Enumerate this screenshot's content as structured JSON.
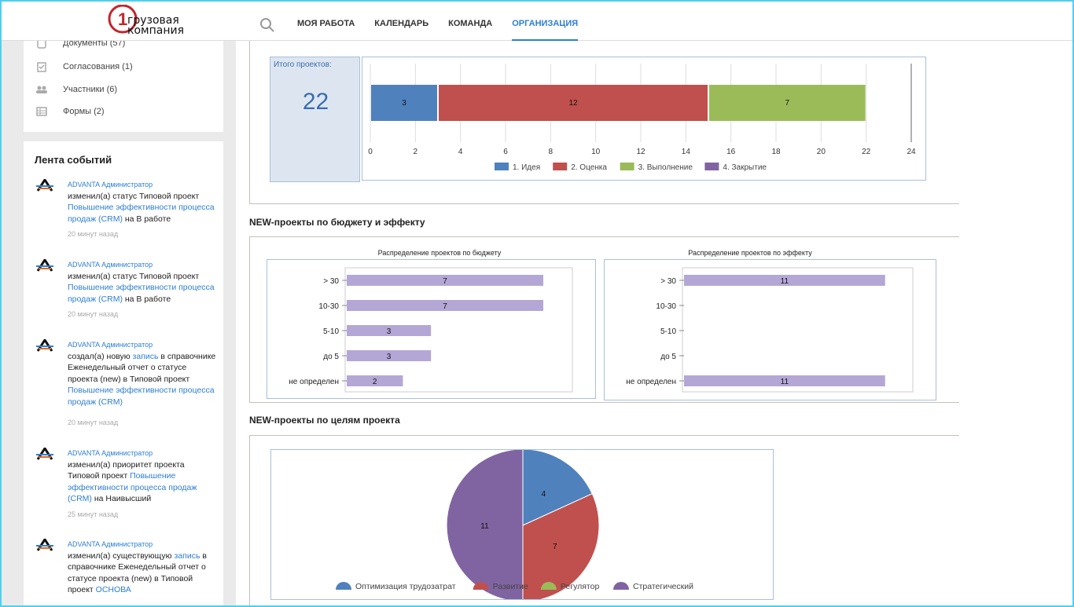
{
  "header": {
    "logo_text_line1": "грузовая",
    "logo_text_line2": "компания",
    "logo_mark": "1",
    "nav": [
      {
        "label": "МОЯ РАБОТА"
      },
      {
        "label": "КАЛЕНДАРЬ"
      },
      {
        "label": "КОМАНДА"
      },
      {
        "label": "ОРГАНИЗАЦИЯ",
        "active": true
      }
    ]
  },
  "sidebar": {
    "items": [
      {
        "label": "Документы (57)",
        "icon": "document-icon"
      },
      {
        "label": "Согласования (1)",
        "icon": "approval-icon"
      },
      {
        "label": "Участники (6)",
        "icon": "users-icon"
      },
      {
        "label": "Формы (2)",
        "icon": "forms-icon"
      }
    ]
  },
  "feed": {
    "title": "Лента событий",
    "events": [
      {
        "author": "ADVANTA Администратор",
        "p1": "изменил(а) статус Типовой проект ",
        "link": "Повышение эффективности процесса продаж (CRM)",
        "p2": " на В работе",
        "time": "20 минут назад"
      },
      {
        "author": "ADVANTA Администратор",
        "p1": "изменил(а) статус Типовой проект ",
        "link": "Повышение эффективности процесса продаж (CRM)",
        "p2": " на В работе",
        "time": "20 минут назад"
      },
      {
        "author": "ADVANTA Администратор",
        "p1": "создал(а) новую ",
        "link0": "запись",
        "p1b": " в справочнике Еженедельный отчет о статусе проекта (new) в Типовой проект ",
        "link": "Повышение эффективности процесса продаж (CRM)",
        "p2": "",
        "time": "20 минут назад"
      },
      {
        "author": "ADVANTA Администратор",
        "p1": "изменил(а) приоритет проекта Типовой проект ",
        "link": "Повышение эффективности процесса продаж (CRM)",
        "p2": " на Наивысший",
        "time": "25 минут назад"
      },
      {
        "author": "ADVANTA Администратор",
        "p1": "изменил(а) существующую ",
        "link0": "запись",
        "p1b": " в справочнике Еженедельный отчет о статусе проекта (new) в Типовой проект ",
        "link": "ОСНОВА",
        "p2": "",
        "time": ""
      }
    ]
  },
  "sections": {
    "budget_title": "NEW-проекты по бюджету и эффекту",
    "goals_title": "NEW-проекты по целям проекта"
  },
  "colors": {
    "blue": "#4f81bd",
    "red": "#c0504d",
    "green": "#9bbb59",
    "purple": "#8064a2",
    "lavender": "#b4a7d6",
    "link": "#2d7fd3"
  },
  "chart_data": [
    {
      "type": "bar",
      "orientation": "horizontal-stacked",
      "total_label": "Итого проектов:",
      "total_value": "22",
      "series": [
        {
          "name": "1. Идея",
          "values": [
            3
          ],
          "color": "#4f81bd"
        },
        {
          "name": "2. Оценка",
          "values": [
            12
          ],
          "color": "#c0504d"
        },
        {
          "name": "3. Выполнение",
          "values": [
            7
          ],
          "color": "#9bbb59"
        },
        {
          "name": "4. Закрытие",
          "values": [
            0
          ],
          "color": "#8064a2"
        }
      ],
      "xlim": [
        0,
        24
      ],
      "xticks": [
        0,
        2,
        4,
        6,
        8,
        10,
        12,
        14,
        16,
        18,
        20,
        22,
        24
      ],
      "legend": "bottom",
      "grid": true
    },
    {
      "type": "bar",
      "orientation": "horizontal",
      "title": "Распределение проектов по бюджету",
      "categories": [
        "> 30",
        "10-30",
        "5-10",
        "до 5",
        "не определен"
      ],
      "values": [
        7,
        7,
        3,
        3,
        2
      ],
      "xlim": [
        0,
        7.7
      ]
    },
    {
      "type": "bar",
      "orientation": "horizontal",
      "title": "Распределение проектов по эффекту",
      "categories": [
        "> 30",
        "10-30",
        "5-10",
        "до 5",
        "не определен"
      ],
      "values": [
        11,
        0,
        0,
        0,
        11
      ],
      "xlim": [
        0,
        12
      ]
    },
    {
      "type": "pie",
      "categories": [
        "Оптимизация трудозатрат",
        "Развитие",
        "Регулятор",
        "Стратегический"
      ],
      "values": [
        4,
        7,
        0,
        11
      ],
      "colors": [
        "#4f81bd",
        "#c0504d",
        "#9bbb59",
        "#8064a2"
      ],
      "legend": "bottom"
    }
  ]
}
